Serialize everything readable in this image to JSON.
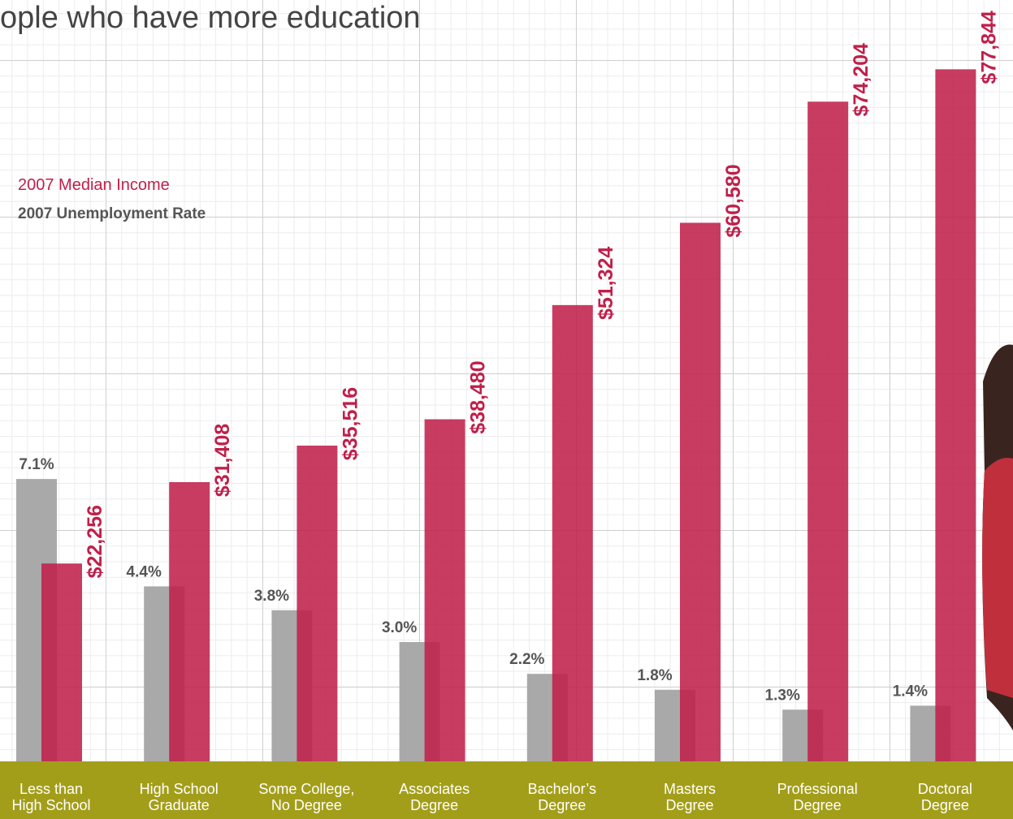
{
  "chart_data": {
    "type": "bar",
    "title": "ople who have more education",
    "categories": [
      "Less than\nHigh School",
      "High School\nGraduate",
      "Some College,\nNo Degree",
      "Associates\nDegree",
      "Bachelor’s\nDegree",
      "Masters\nDegree",
      "Professional\nDegree",
      "Doctoral\nDegree"
    ],
    "series": [
      {
        "name": "2007 Unemployment Rate",
        "color": "#a9a9a9",
        "values": [
          7.1,
          4.4,
          3.8,
          3.0,
          2.2,
          1.8,
          1.3,
          1.4
        ],
        "value_labels": [
          "7.1%",
          "4.4%",
          "3.8%",
          "3.0%",
          "2.2%",
          "1.8%",
          "1.3%",
          "1.4%"
        ]
      },
      {
        "name": "2007 Median Income",
        "color": "#c01f4a",
        "axis": "y2",
        "values": [
          22256,
          31408,
          35516,
          38480,
          51324,
          60580,
          74204,
          77844
        ],
        "value_labels": [
          "$22,256",
          "$31,408",
          "$35,516",
          "$38,480",
          "$51,324",
          "$60,580",
          "$74,204",
          "$77,844"
        ]
      }
    ],
    "ylim": [
      0,
      19
    ],
    "y2lim": [
      0,
      85000
    ],
    "grid": true
  }
}
